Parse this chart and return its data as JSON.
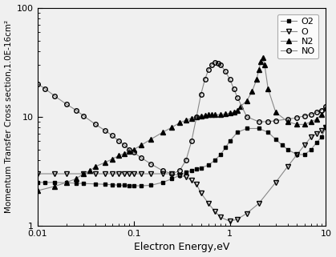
{
  "title": "",
  "xlabel": "Electron Energy,eV",
  "ylabel": "Momentum Transfer Cross section,1.0E-16cm²",
  "xlim": [
    0.01,
    10
  ],
  "ylim": [
    1,
    100
  ],
  "legend": [
    "O2",
    "O",
    "N2",
    "NO"
  ],
  "O2_x": [
    0.01,
    0.012,
    0.015,
    0.02,
    0.025,
    0.03,
    0.04,
    0.05,
    0.06,
    0.07,
    0.08,
    0.09,
    0.1,
    0.12,
    0.15,
    0.2,
    0.25,
    0.3,
    0.35,
    0.4,
    0.45,
    0.5,
    0.6,
    0.7,
    0.8,
    0.9,
    1.0,
    1.2,
    1.5,
    2.0,
    2.5,
    3.0,
    3.5,
    4.0,
    5.0,
    6.0,
    7.0,
    8.0,
    9.0,
    10.0
  ],
  "O2_y": [
    2.5,
    2.5,
    2.5,
    2.48,
    2.46,
    2.44,
    2.42,
    2.4,
    2.38,
    2.36,
    2.35,
    2.34,
    2.33,
    2.33,
    2.35,
    2.5,
    2.7,
    2.9,
    3.1,
    3.2,
    3.3,
    3.4,
    3.6,
    4.0,
    4.5,
    5.2,
    6.0,
    7.2,
    7.8,
    7.8,
    7.2,
    6.2,
    5.5,
    5.0,
    4.5,
    4.5,
    5.0,
    5.8,
    6.5,
    8.0
  ],
  "O_x": [
    0.01,
    0.015,
    0.02,
    0.03,
    0.04,
    0.05,
    0.06,
    0.07,
    0.08,
    0.09,
    0.1,
    0.12,
    0.15,
    0.2,
    0.25,
    0.3,
    0.35,
    0.4,
    0.45,
    0.5,
    0.6,
    0.7,
    0.8,
    1.0,
    1.2,
    1.5,
    2.0,
    3.0,
    4.0,
    5.0,
    6.0,
    7.0,
    8.0,
    9.0,
    10.0
  ],
  "O_y": [
    3.0,
    3.0,
    3.0,
    3.0,
    3.0,
    3.0,
    3.0,
    3.0,
    3.0,
    3.0,
    3.0,
    3.0,
    3.0,
    3.0,
    3.0,
    2.9,
    2.8,
    2.6,
    2.4,
    2.0,
    1.6,
    1.35,
    1.2,
    1.1,
    1.15,
    1.3,
    1.6,
    2.5,
    3.5,
    4.5,
    5.5,
    6.5,
    7.0,
    7.5,
    8.0
  ],
  "N2_x": [
    0.01,
    0.015,
    0.02,
    0.025,
    0.03,
    0.035,
    0.04,
    0.05,
    0.06,
    0.07,
    0.08,
    0.09,
    0.1,
    0.12,
    0.15,
    0.2,
    0.25,
    0.3,
    0.35,
    0.4,
    0.45,
    0.5,
    0.55,
    0.6,
    0.65,
    0.7,
    0.8,
    0.9,
    1.0,
    1.1,
    1.2,
    1.3,
    1.5,
    1.7,
    1.9,
    2.0,
    2.1,
    2.2,
    2.3,
    2.5,
    3.0,
    4.0,
    5.0,
    6.0,
    7.0,
    8.0,
    9.0,
    10.0
  ],
  "N2_y": [
    2.1,
    2.3,
    2.5,
    2.7,
    3.0,
    3.2,
    3.5,
    3.8,
    4.1,
    4.4,
    4.6,
    4.8,
    5.0,
    5.5,
    6.2,
    7.2,
    8.0,
    8.8,
    9.3,
    9.7,
    10.0,
    10.2,
    10.3,
    10.4,
    10.4,
    10.4,
    10.5,
    10.6,
    10.8,
    11.0,
    11.5,
    12.5,
    14.0,
    17.0,
    22.0,
    27.0,
    32.0,
    35.0,
    30.0,
    18.0,
    11.0,
    9.0,
    8.5,
    8.5,
    9.0,
    9.5,
    10.5,
    12.0
  ],
  "NO_x": [
    0.01,
    0.012,
    0.015,
    0.02,
    0.025,
    0.03,
    0.04,
    0.05,
    0.06,
    0.07,
    0.08,
    0.09,
    0.1,
    0.12,
    0.15,
    0.2,
    0.25,
    0.3,
    0.35,
    0.4,
    0.45,
    0.5,
    0.55,
    0.6,
    0.65,
    0.7,
    0.75,
    0.8,
    0.9,
    1.0,
    1.1,
    1.2,
    1.5,
    2.0,
    2.5,
    3.0,
    4.0,
    5.0,
    6.0,
    7.0,
    8.0,
    9.0,
    10.0
  ],
  "NO_y": [
    20.0,
    18.0,
    15.5,
    13.0,
    11.5,
    10.2,
    8.5,
    7.5,
    6.7,
    6.0,
    5.5,
    5.0,
    4.7,
    4.2,
    3.7,
    3.2,
    3.0,
    3.2,
    4.0,
    6.0,
    10.0,
    16.0,
    22.0,
    27.0,
    30.0,
    31.5,
    31.0,
    30.0,
    26.0,
    22.0,
    18.0,
    15.0,
    10.0,
    9.0,
    9.0,
    9.2,
    9.5,
    9.8,
    10.2,
    10.5,
    11.0,
    11.5,
    12.5
  ],
  "line_color": "#888888",
  "marker_color": "#000000",
  "bg_color": "#f0f0f0"
}
